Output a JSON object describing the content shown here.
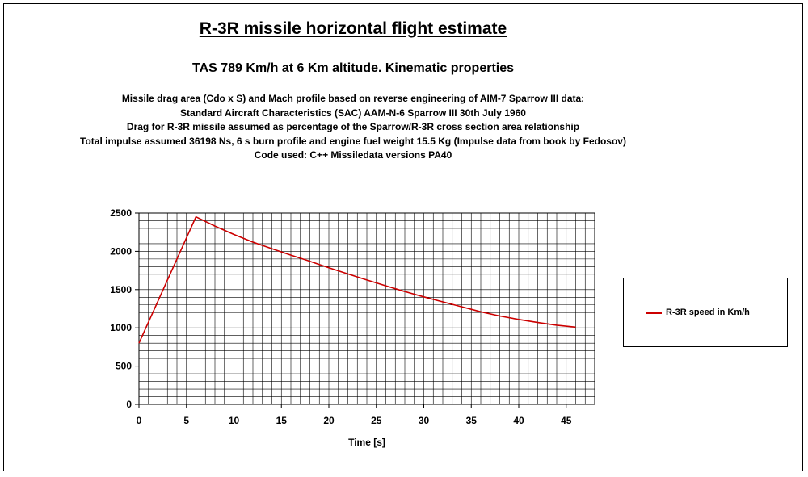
{
  "title": "R-3R missile horizontal flight estimate",
  "subtitle": "TAS 789 Km/h at 6 Km altitude. Kinematic properties",
  "notes": [
    "Missile drag area (Cdo x S) and Mach profile based on reverse engineering of AIM-7 Sparrow III data:",
    "Standard Aircraft Characteristics (SAC) AAM-N-6 Sparrow III 30th July 1960",
    "Drag for R-3R missile assumed as percentage of the Sparrow/R-3R cross section area relationship",
    "Total impulse assumed 36198 Ns, 6 s burn profile and engine fuel weight 15.5 Kg (Impulse data from book by Fedosov)",
    "Code used: C++ Missiledata versions PA40"
  ],
  "chart_data": {
    "type": "line",
    "xlabel": "Time [s]",
    "ylabel": "",
    "xlim": [
      0,
      48
    ],
    "ylim": [
      0,
      2500
    ],
    "x_ticks": [
      0,
      5,
      10,
      15,
      20,
      25,
      30,
      35,
      40,
      45
    ],
    "y_ticks": [
      0,
      500,
      1000,
      1500,
      2000,
      2500
    ],
    "grid": true,
    "legend_position": "right",
    "series": [
      {
        "name": "R-3R speed in Km/h",
        "color": "#cc0000",
        "x": [
          0,
          6,
          8,
          10,
          12,
          14,
          16,
          18,
          20,
          22,
          24,
          26,
          28,
          30,
          32,
          34,
          36,
          38,
          40,
          42,
          44,
          46
        ],
        "y": [
          800,
          2450,
          2330,
          2220,
          2120,
          2035,
          1950,
          1870,
          1785,
          1705,
          1625,
          1550,
          1475,
          1405,
          1340,
          1275,
          1210,
          1155,
          1110,
          1070,
          1035,
          1010
        ]
      }
    ]
  }
}
